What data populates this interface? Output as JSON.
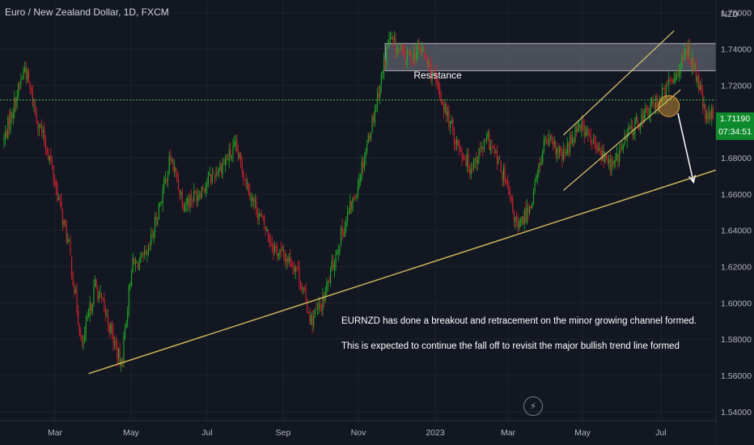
{
  "title": "Euro / New Zealand Dollar, 1D, FXCM",
  "currency_label": "NZD",
  "resistance_label": "Resistance",
  "annotations": [
    "EURNZD has done a breakout and retracement on the minor growing channel formed.",
    "This is expected to continue the fall off to revisit the major bullish trend line formed"
  ],
  "price_tag": {
    "price": "1.71190",
    "countdown": "07:34:51"
  },
  "bolt_icon": "lightning-icon",
  "colors": {
    "background": "#131722",
    "up": "#22ab24",
    "down": "#d0232e",
    "trendline": "#c9b458",
    "current_price": "#4caf50",
    "arrow": "#ffffff",
    "highlight": "#e0a03a"
  },
  "chart_data": {
    "type": "candlestick",
    "symbol": "EURNZD",
    "timeframe": "1D",
    "x_ticks": [
      "Mar",
      "May",
      "Jul",
      "Sep",
      "Nov",
      "2023",
      "Mar",
      "May",
      "Jul"
    ],
    "y_ticks": [
      "1.76000",
      "1.74000",
      "1.72000",
      "1.70000",
      "1.68000",
      "1.66000",
      "1.64000",
      "1.62000",
      "1.60000",
      "1.58000",
      "1.56000",
      "1.54000"
    ],
    "ylim": [
      1.535,
      1.767
    ],
    "current_price": 1.7119,
    "key_closes": [
      [
        0,
        1.69
      ],
      [
        10,
        1.715
      ],
      [
        16,
        1.73
      ],
      [
        24,
        1.705
      ],
      [
        35,
        1.68
      ],
      [
        50,
        1.63
      ],
      [
        60,
        1.575
      ],
      [
        70,
        1.61
      ],
      [
        80,
        1.59
      ],
      [
        90,
        1.565
      ],
      [
        98,
        1.62
      ],
      [
        110,
        1.625
      ],
      [
        128,
        1.68
      ],
      [
        138,
        1.655
      ],
      [
        148,
        1.66
      ],
      [
        160,
        1.67
      ],
      [
        178,
        1.685
      ],
      [
        192,
        1.655
      ],
      [
        208,
        1.63
      ],
      [
        225,
        1.62
      ],
      [
        236,
        1.59
      ],
      [
        245,
        1.6
      ],
      [
        258,
        1.635
      ],
      [
        270,
        1.66
      ],
      [
        283,
        1.7
      ],
      [
        296,
        1.745
      ],
      [
        309,
        1.735
      ],
      [
        321,
        1.74
      ],
      [
        335,
        1.715
      ],
      [
        347,
        1.69
      ],
      [
        358,
        1.675
      ],
      [
        372,
        1.69
      ],
      [
        384,
        1.67
      ],
      [
        395,
        1.64
      ],
      [
        405,
        1.655
      ],
      [
        416,
        1.69
      ],
      [
        430,
        1.68
      ],
      [
        442,
        1.7
      ],
      [
        455,
        1.685
      ],
      [
        468,
        1.675
      ],
      [
        481,
        1.695
      ],
      [
        494,
        1.705
      ],
      [
        507,
        1.715
      ],
      [
        519,
        1.73
      ],
      [
        526,
        1.74
      ],
      [
        534,
        1.72
      ],
      [
        540,
        1.7
      ],
      [
        545,
        1.705
      ]
    ],
    "candle_count": 546,
    "overlays": {
      "resistance_zone": {
        "x": [
          293,
          555
        ],
        "y": [
          1.728,
          1.743
        ]
      },
      "major_trendline": {
        "from": [
          65,
          1.561
        ],
        "to": [
          630,
          1.6925
        ]
      },
      "channel_upper": {
        "from": [
          430,
          1.6925
        ],
        "to": [
          515,
          1.75
        ]
      },
      "channel_lower": {
        "from": [
          430,
          1.662
        ],
        "to": [
          520,
          1.7175
        ]
      },
      "projection_arrow": {
        "from": [
          518,
          1.7045
        ],
        "to": [
          530,
          1.6665
        ]
      },
      "highlight_circle": {
        "x": 511,
        "y": 1.7085
      }
    }
  }
}
